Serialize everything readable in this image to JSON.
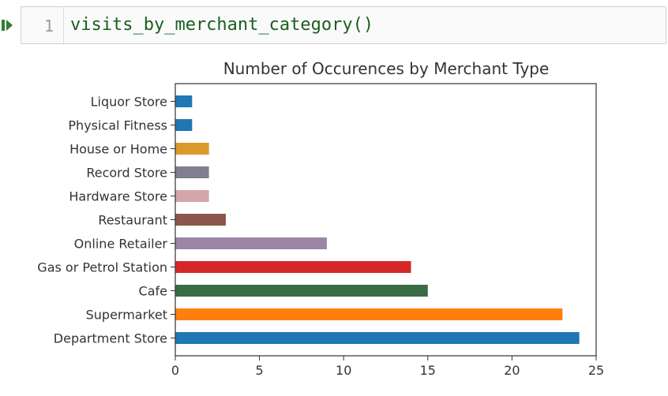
{
  "cell": {
    "line_number": "1",
    "code": "visits_by_merchant_category()"
  },
  "chart_data": {
    "type": "bar",
    "orientation": "horizontal",
    "title": "Number of Occurences by Merchant Type",
    "xlabel": "",
    "ylabel": "",
    "xlim": [
      0,
      25
    ],
    "xticks": [
      0,
      5,
      10,
      15,
      20,
      25
    ],
    "grid": false,
    "categories": [
      "Department Store",
      "Supermarket",
      "Cafe",
      "Gas or Petrol Station",
      "Online Retailer",
      "Restaurant",
      "Hardware Store",
      "Record Store",
      "House or Home",
      "Physical Fitness",
      "Liquor Store"
    ],
    "values": [
      24,
      23,
      15,
      14,
      9,
      3,
      2,
      2,
      2,
      1,
      1
    ],
    "colors": [
      "#1f77b4",
      "#ff7f0e",
      "#3a6b45",
      "#d62728",
      "#9c86a6",
      "#8c564b",
      "#d4a5a9",
      "#7f7f8f",
      "#d99a2b",
      "#1f77b4",
      "#1f77b4"
    ]
  }
}
